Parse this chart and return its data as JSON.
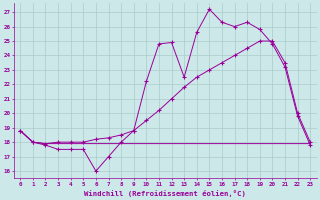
{
  "bg_color": "#cce8e8",
  "line_color": "#990099",
  "grid_color": "#aacccc",
  "xlabel": "Windchill (Refroidissement éolien,°C)",
  "xlim": [
    -0.5,
    23.5
  ],
  "ylim": [
    15.5,
    27.6
  ],
  "yticks": [
    16,
    17,
    18,
    19,
    20,
    21,
    22,
    23,
    24,
    25,
    26,
    27
  ],
  "xticks": [
    0,
    1,
    2,
    3,
    4,
    5,
    6,
    7,
    8,
    9,
    10,
    11,
    12,
    13,
    14,
    15,
    16,
    17,
    18,
    19,
    20,
    21,
    22,
    23
  ],
  "line1_x": [
    0,
    1,
    2,
    3,
    4,
    5,
    6,
    7,
    8,
    9,
    10,
    11,
    12,
    13,
    14,
    15,
    16,
    17,
    18,
    19,
    20,
    21,
    22,
    23
  ],
  "line1_y": [
    18.8,
    18.0,
    17.8,
    17.5,
    17.5,
    17.5,
    16.0,
    17.0,
    18.0,
    18.8,
    22.2,
    24.8,
    24.9,
    22.5,
    25.6,
    27.2,
    26.3,
    26.0,
    26.3,
    25.8,
    24.8,
    23.2,
    19.8,
    17.8
  ],
  "line2_x": [
    0,
    1,
    2,
    3,
    4,
    5,
    6,
    7,
    8,
    9,
    10,
    11,
    12,
    13,
    14,
    15,
    16,
    17,
    18,
    19,
    20,
    21,
    22,
    23
  ],
  "line2_y": [
    18.8,
    18.0,
    17.9,
    18.0,
    18.0,
    18.0,
    18.2,
    18.3,
    18.5,
    18.8,
    19.5,
    20.2,
    21.0,
    21.8,
    22.5,
    23.0,
    23.5,
    24.0,
    24.5,
    25.0,
    25.0,
    23.5,
    20.0,
    18.0
  ],
  "line3_x": [
    0,
    1,
    2,
    3,
    4,
    5,
    6,
    7,
    8,
    9,
    10,
    11,
    12,
    13,
    14,
    15,
    16,
    17,
    18,
    19,
    20,
    21,
    22,
    23
  ],
  "line3_y": [
    18.8,
    18.0,
    17.9,
    17.9,
    17.9,
    17.9,
    17.9,
    17.9,
    17.9,
    17.9,
    17.9,
    17.9,
    17.9,
    17.9,
    17.9,
    17.9,
    17.9,
    17.9,
    17.9,
    17.9,
    17.9,
    17.9,
    17.9,
    17.9
  ]
}
